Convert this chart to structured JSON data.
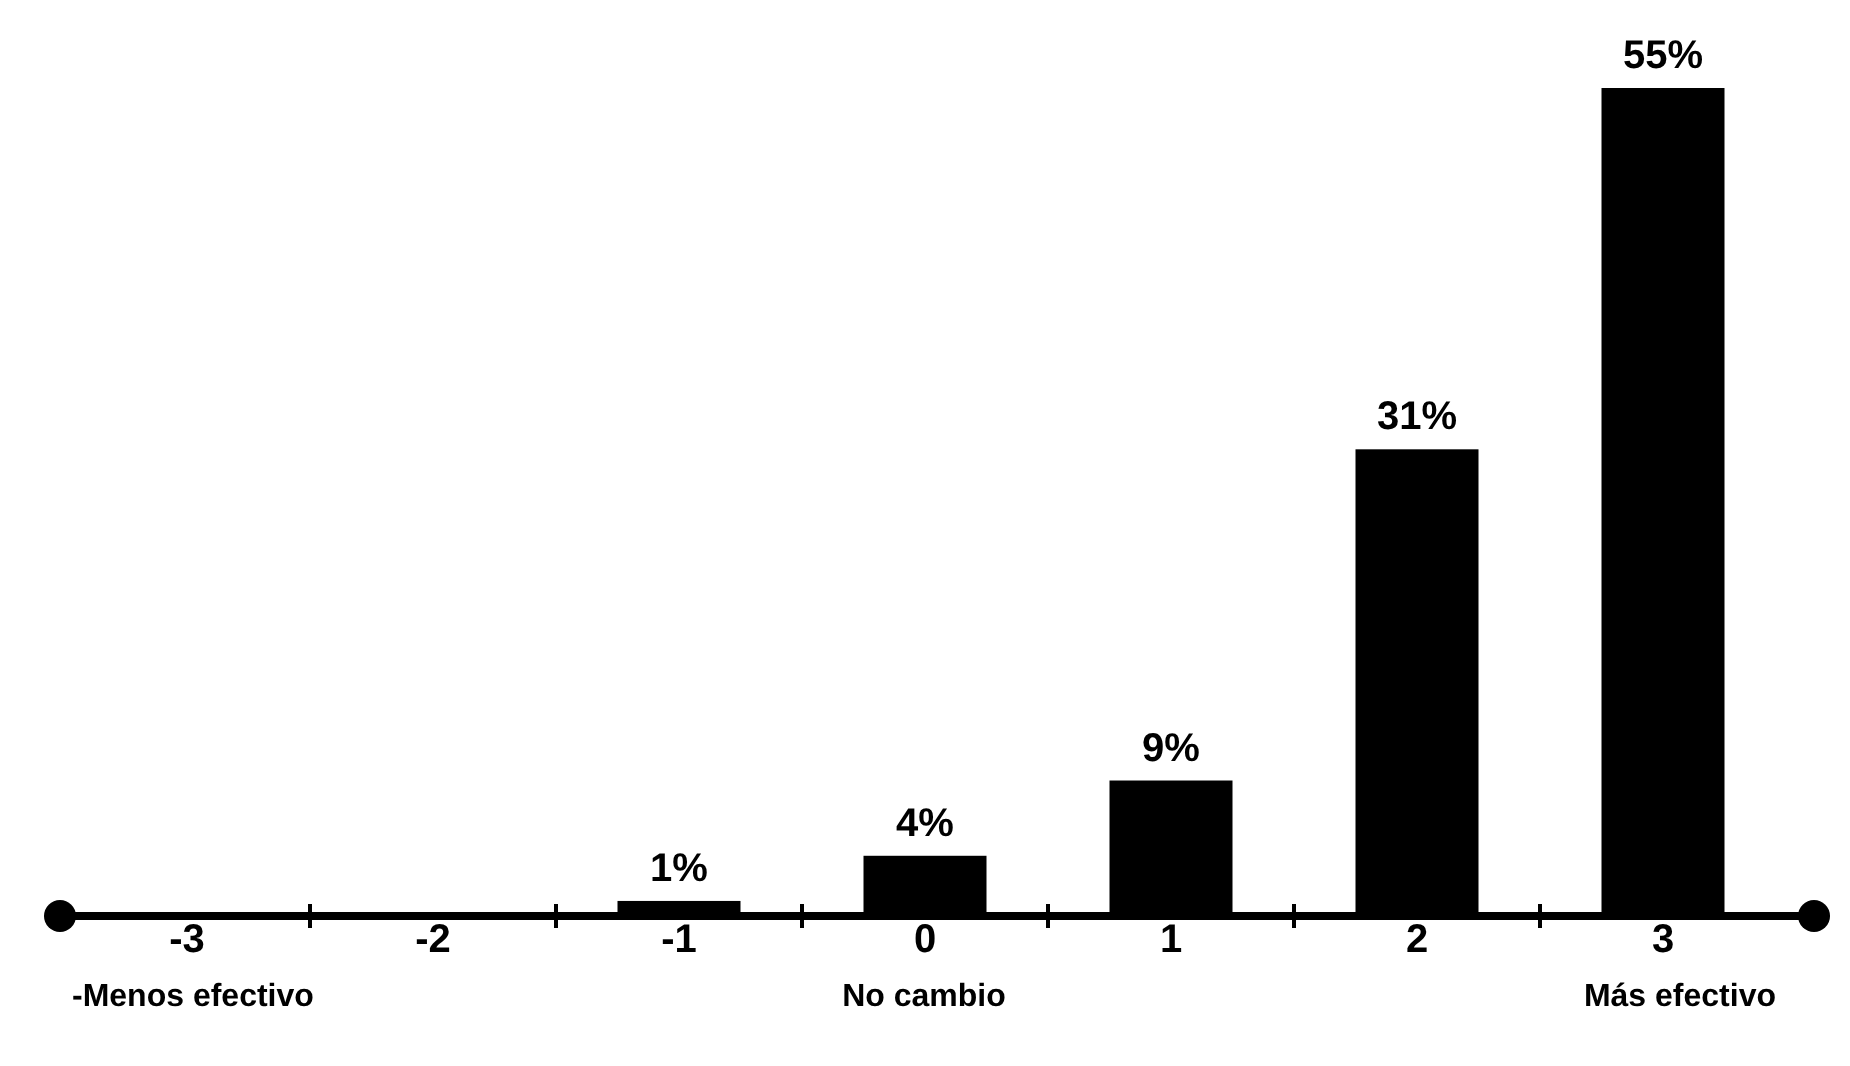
{
  "chart_data": {
    "type": "bar",
    "categories": [
      "-3",
      "-2",
      "-1",
      "0",
      "1",
      "2",
      "3"
    ],
    "values": [
      0,
      0,
      1,
      4,
      9,
      31,
      55
    ],
    "value_labels": [
      null,
      null,
      "1%",
      "4%",
      "9%",
      "31%",
      "55%"
    ],
    "color": "#000000",
    "annotations": [
      "-Menos efectivo",
      "No cambio",
      "Más efectivo"
    ]
  }
}
